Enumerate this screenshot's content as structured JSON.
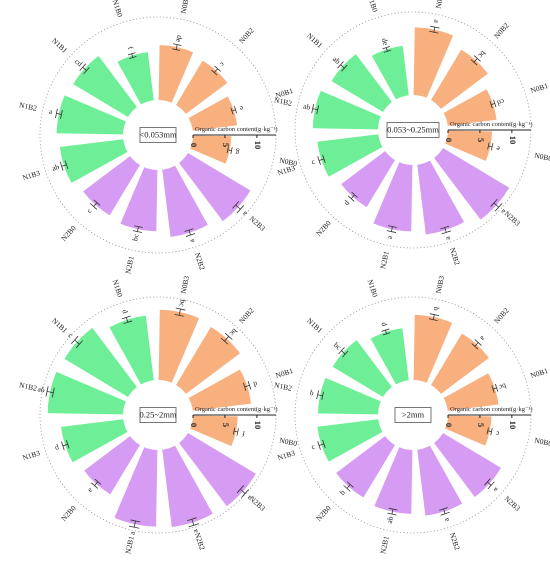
{
  "chart_data": [
    {
      "type": "radial-bar",
      "title": "<0.053mm",
      "axis_title": "Organic carbon content(g·kg⁻¹)",
      "ticks": [
        0,
        5,
        10
      ],
      "rlim": [
        0,
        13
      ],
      "categories": [
        "N0B3",
        "N0B2",
        "N0B1",
        "N0B0",
        "N2B3",
        "N2B2",
        "N2B1",
        "N2B0",
        "N1B3",
        "N1B2",
        "N1B1",
        "N1B0"
      ],
      "values": [
        8.6,
        8.1,
        7.0,
        6.0,
        11.4,
        10.6,
        9.6,
        9.2,
        10.0,
        10.4,
        10.0,
        7.6
      ],
      "errors": [
        0.4,
        0.4,
        0.3,
        0.3,
        0.5,
        0.4,
        0.4,
        0.4,
        0.4,
        0.4,
        0.4,
        0.3
      ],
      "letters": [
        "de",
        "c",
        "e",
        "g",
        "a",
        "a",
        "bc",
        "c",
        "ab",
        "a",
        "cd",
        "f"
      ]
    },
    {
      "type": "radial-bar",
      "title": "0.053~0.25mm",
      "axis_title": "Organic carbon content(g·kg⁻¹)",
      "ticks": [
        0,
        5,
        10
      ],
      "rlim": [
        0,
        13
      ],
      "categories": [
        "N0B3",
        "N0B2",
        "N0B1",
        "N0B0",
        "N2B3",
        "N2B2",
        "N2B1",
        "N2B0",
        "N1B3",
        "N1B2",
        "N1B1",
        "N1B0"
      ],
      "values": [
        10.6,
        9.2,
        7.7,
        6.9,
        12.1,
        11.0,
        10.4,
        8.6,
        9.6,
        10.2,
        9.4,
        7.8
      ],
      "errors": [
        0.4,
        0.4,
        0.3,
        0.3,
        0.5,
        0.4,
        0.4,
        0.4,
        0.4,
        0.4,
        0.4,
        0.3
      ],
      "letters": [
        "a",
        "bc",
        "cd",
        "e",
        "a",
        "a",
        "a",
        "d",
        "c",
        "ab",
        "ab",
        "de"
      ]
    },
    {
      "type": "radial-bar",
      "title": "0.25~2mm",
      "axis_title": "Organic carbon content(g·kg⁻¹)",
      "ticks": [
        0,
        5,
        10
      ],
      "rlim": [
        0,
        13
      ],
      "categories": [
        "N0B3",
        "N0B2",
        "N0B1",
        "N0B0",
        "N2B3",
        "N2B2",
        "N2B1",
        "N2B0",
        "N1B3",
        "N1B2",
        "N1B1",
        "N1B0"
      ],
      "values": [
        11.0,
        10.6,
        9.2,
        7.0,
        12.4,
        12.2,
        12.0,
        9.0,
        9.8,
        11.8,
        11.6,
        10.2
      ],
      "errors": [
        0.5,
        0.5,
        0.4,
        0.3,
        0.5,
        0.5,
        0.5,
        0.4,
        0.4,
        0.5,
        0.5,
        0.4
      ],
      "letters": [
        "bc",
        "bc",
        "d",
        "f",
        "a",
        "a",
        "a",
        "e",
        "d",
        "ab",
        "c",
        "d"
      ]
    },
    {
      "type": "radial-bar",
      "title": ">2mm",
      "axis_title": "Organic carbon content(g·kg⁻¹)",
      "ticks": [
        0,
        5,
        10
      ],
      "rlim": [
        0,
        13
      ],
      "categories": [
        "N0B3",
        "N0B2",
        "N0B1",
        "N0B0",
        "N2B3",
        "N2B2",
        "N2B1",
        "N2B0",
        "N1B3",
        "N1B2",
        "N1B1",
        "N1B0"
      ],
      "values": [
        10.2,
        9.4,
        8.0,
        6.8,
        10.6,
        10.4,
        10.0,
        9.6,
        9.6,
        9.4,
        9.2,
        8.2
      ],
      "errors": [
        0.4,
        0.4,
        0.3,
        0.3,
        0.4,
        0.4,
        0.4,
        0.4,
        0.4,
        0.4,
        0.4,
        0.3
      ],
      "letters": [
        "b",
        "a",
        "bc",
        "c",
        "a",
        "a",
        "ab",
        "b",
        "c",
        "b",
        "bc",
        "d"
      ]
    }
  ],
  "colors": {
    "N0": "#f8b07f",
    "N2": "#d69cf3",
    "N1": "#6dee97",
    "grid": "#9a9a9a",
    "axis": "#222222"
  }
}
